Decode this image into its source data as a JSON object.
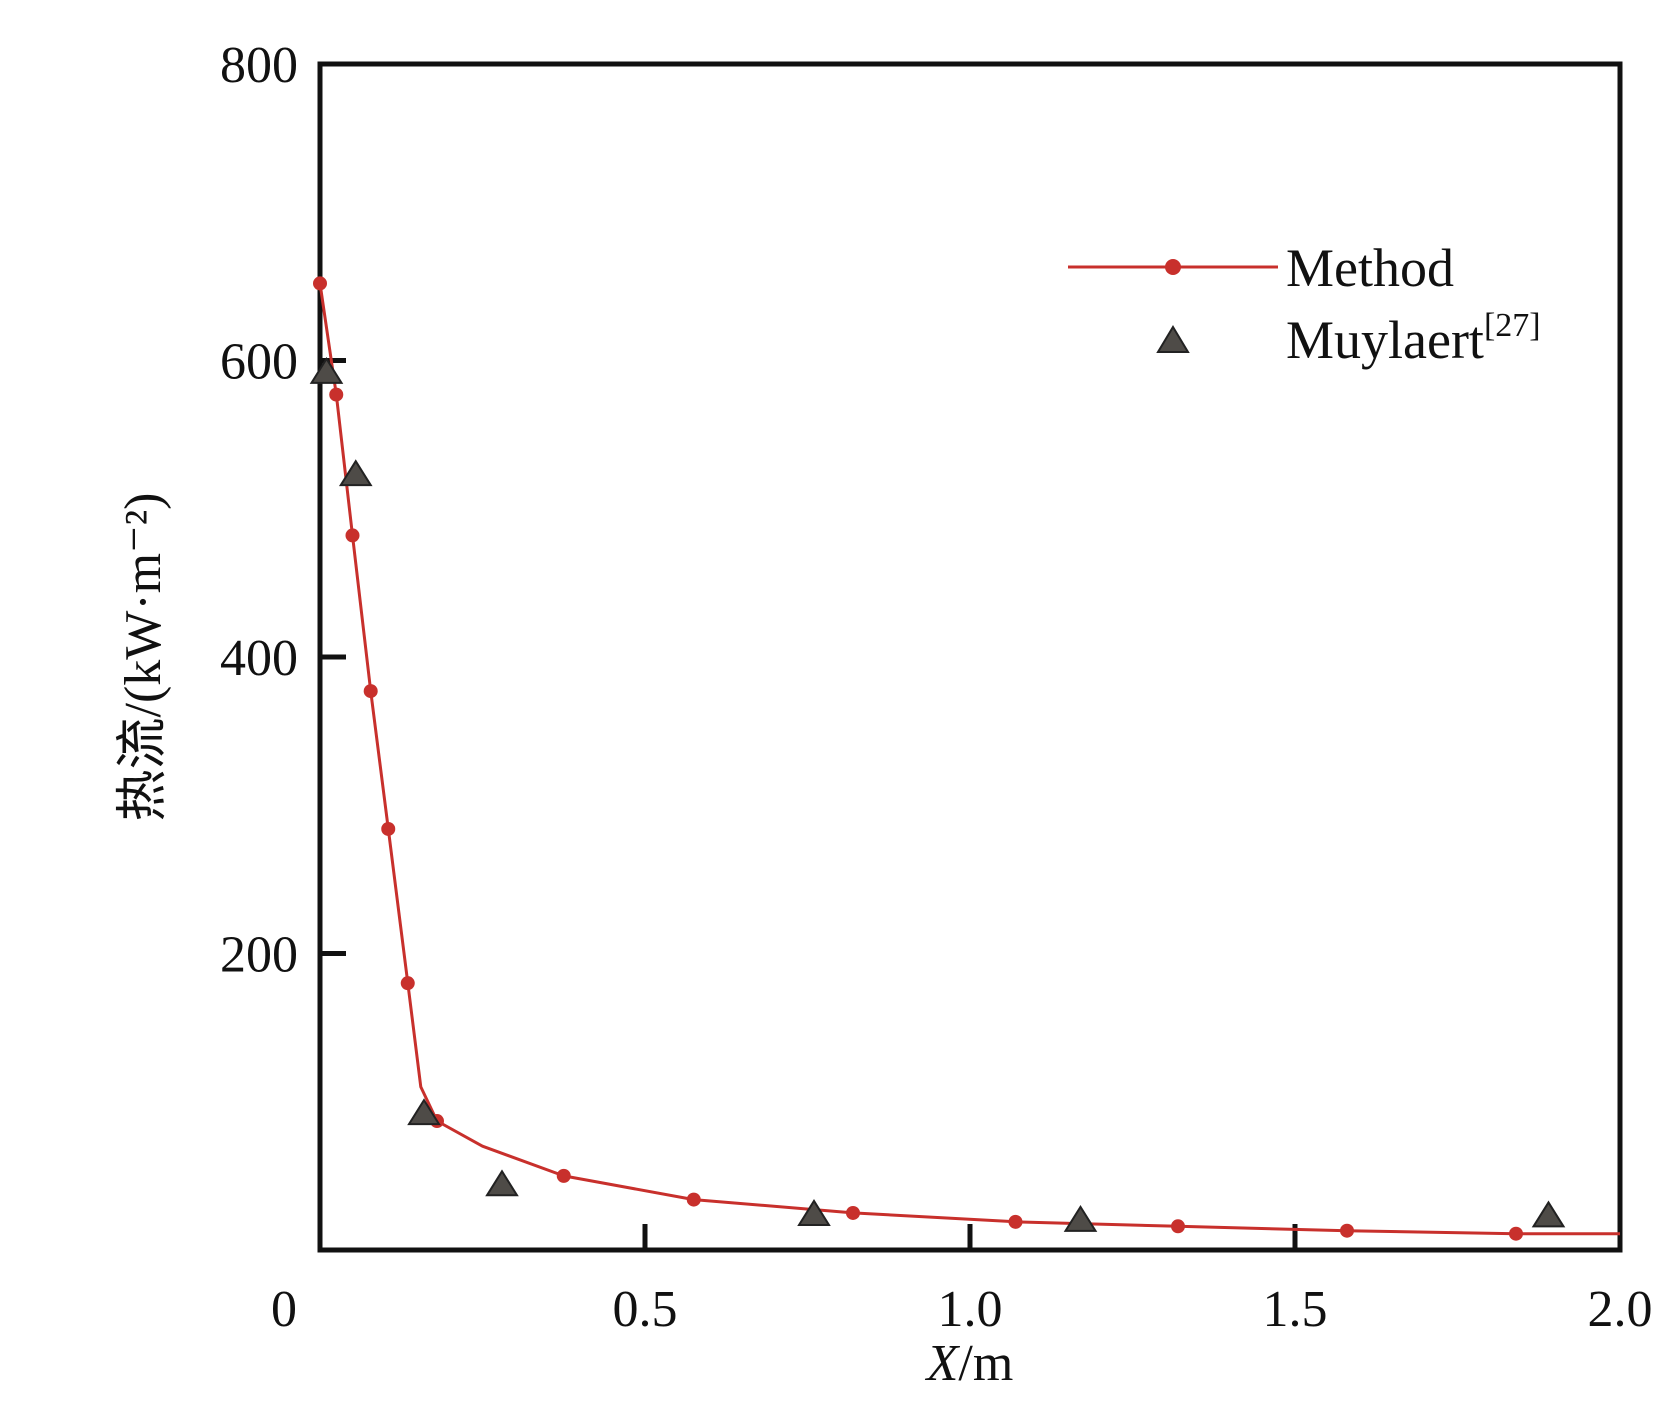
{
  "chart_data": {
    "type": "line",
    "title": "",
    "xlabel_var": "X",
    "xlabel_unit": "/m",
    "ylabel": "热流/(kW·m⁻²)",
    "xlim": [
      0,
      2.0
    ],
    "ylim": [
      0,
      800
    ],
    "x_ticks": [
      "0",
      "0.5",
      "1.0",
      "1.5",
      "2.0"
    ],
    "x_tick_values": [
      0,
      0.5,
      1.0,
      1.5,
      2.0
    ],
    "y_ticks": [
      "200",
      "400",
      "600",
      "800"
    ],
    "y_tick_values": [
      200,
      400,
      600,
      800
    ],
    "grid": false,
    "legend_position": "top-right",
    "series": [
      {
        "name": "Method",
        "kind": "line+markers",
        "color": "#c8302c",
        "markers": [
          [
            0.0,
            652
          ],
          [
            0.025,
            577
          ],
          [
            0.05,
            482
          ],
          [
            0.078,
            377
          ],
          [
            0.105,
            284
          ],
          [
            0.135,
            180
          ],
          [
            0.18,
            87
          ],
          [
            0.375,
            50
          ],
          [
            0.575,
            34
          ],
          [
            0.82,
            25
          ],
          [
            1.07,
            19
          ],
          [
            1.32,
            16
          ],
          [
            1.58,
            13
          ],
          [
            1.84,
            11
          ]
        ],
        "curve": [
          [
            0.0,
            652
          ],
          [
            0.025,
            577
          ],
          [
            0.05,
            482
          ],
          [
            0.078,
            377
          ],
          [
            0.105,
            284
          ],
          [
            0.135,
            180
          ],
          [
            0.155,
            110
          ],
          [
            0.18,
            87
          ],
          [
            0.25,
            70
          ],
          [
            0.375,
            50
          ],
          [
            0.575,
            34
          ],
          [
            0.82,
            25
          ],
          [
            1.07,
            19
          ],
          [
            1.32,
            16
          ],
          [
            1.58,
            13
          ],
          [
            1.84,
            11
          ],
          [
            2.0,
            11
          ]
        ]
      },
      {
        "name": "Muylaert",
        "name_superscript": "[27]",
        "kind": "markers",
        "marker": "triangle",
        "color": "#4e4b47",
        "points": [
          [
            0.01,
            593
          ],
          [
            0.055,
            524
          ],
          [
            0.16,
            93
          ],
          [
            0.28,
            45
          ],
          [
            0.76,
            25
          ],
          [
            1.17,
            21
          ],
          [
            1.89,
            24
          ]
        ]
      }
    ]
  }
}
